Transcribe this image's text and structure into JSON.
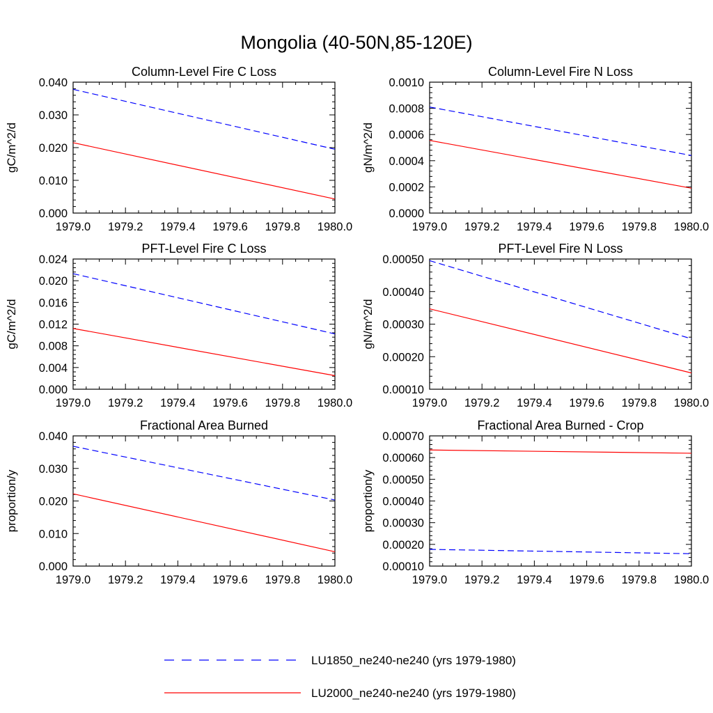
{
  "figure_title": "Mongolia (40-50N,85-120E)",
  "legend": [
    {
      "label": "LU1850_ne240-ne240 (yrs 1979-1980)",
      "color": "#0000ff",
      "dash": "dashed"
    },
    {
      "label": "LU2000_ne240-ne240 (yrs 1979-1980)",
      "color": "#ff0000",
      "dash": "solid"
    }
  ],
  "chart_data": [
    {
      "type": "line",
      "title": "Column-Level Fire C Loss",
      "ylabel": "gC/m^2/d",
      "xlim": [
        1979.0,
        1980.0
      ],
      "ylim": [
        0.0,
        0.04
      ],
      "xticks": [
        "1979.0",
        "1979.2",
        "1979.4",
        "1979.6",
        "1979.8",
        "1980.0"
      ],
      "yticks": [
        "0.000",
        "0.010",
        "0.020",
        "0.030",
        "0.040"
      ],
      "x": [
        1979.0,
        1980.0
      ],
      "series": [
        {
          "name": "LU1850_ne240-ne240 (yrs 1979-1980)",
          "color": "#0000ff",
          "dash": "dashed",
          "values": [
            0.0378,
            0.0195
          ]
        },
        {
          "name": "LU2000_ne240-ne240 (yrs 1979-1980)",
          "color": "#ff0000",
          "dash": "solid",
          "values": [
            0.0215,
            0.0043
          ]
        }
      ]
    },
    {
      "type": "line",
      "title": "Column-Level Fire N Loss",
      "ylabel": "gN/m^2/d",
      "xlim": [
        1979.0,
        1980.0
      ],
      "ylim": [
        0.0,
        0.001
      ],
      "xticks": [
        "1979.0",
        "1979.2",
        "1979.4",
        "1979.6",
        "1979.8",
        "1980.0"
      ],
      "yticks": [
        "0.0000",
        "0.0002",
        "0.0004",
        "0.0006",
        "0.0008",
        "0.0010"
      ],
      "x": [
        1979.0,
        1980.0
      ],
      "series": [
        {
          "name": "LU1850_ne240-ne240 (yrs 1979-1980)",
          "color": "#0000ff",
          "dash": "dashed",
          "values": [
            0.00081,
            0.00044
          ]
        },
        {
          "name": "LU2000_ne240-ne240 (yrs 1979-1980)",
          "color": "#ff0000",
          "dash": "solid",
          "values": [
            0.000555,
            0.00019
          ]
        }
      ]
    },
    {
      "type": "line",
      "title": "PFT-Level Fire C Loss",
      "ylabel": "gC/m^2/d",
      "xlim": [
        1979.0,
        1980.0
      ],
      "ylim": [
        0.0,
        0.024
      ],
      "xticks": [
        "1979.0",
        "1979.2",
        "1979.4",
        "1979.6",
        "1979.8",
        "1980.0"
      ],
      "yticks": [
        "0.000",
        "0.004",
        "0.008",
        "0.012",
        "0.016",
        "0.020",
        "0.024"
      ],
      "x": [
        1979.0,
        1980.0
      ],
      "series": [
        {
          "name": "LU1850_ne240-ne240 (yrs 1979-1980)",
          "color": "#0000ff",
          "dash": "dashed",
          "values": [
            0.0213,
            0.0102
          ]
        },
        {
          "name": "LU2000_ne240-ne240 (yrs 1979-1980)",
          "color": "#ff0000",
          "dash": "solid",
          "values": [
            0.0112,
            0.0025
          ]
        }
      ]
    },
    {
      "type": "line",
      "title": "PFT-Level Fire N Loss",
      "ylabel": "gN/m^2/d",
      "xlim": [
        1979.0,
        1980.0
      ],
      "ylim": [
        0.0001,
        0.0005
      ],
      "xticks": [
        "1979.0",
        "1979.2",
        "1979.4",
        "1979.6",
        "1979.8",
        "1980.0"
      ],
      "yticks": [
        "0.00010",
        "0.00020",
        "0.00030",
        "0.00040",
        "0.00050"
      ],
      "x": [
        1979.0,
        1980.0
      ],
      "series": [
        {
          "name": "LU1850_ne240-ne240 (yrs 1979-1980)",
          "color": "#0000ff",
          "dash": "dashed",
          "values": [
            0.000495,
            0.000255
          ]
        },
        {
          "name": "LU2000_ne240-ne240 (yrs 1979-1980)",
          "color": "#ff0000",
          "dash": "solid",
          "values": [
            0.000347,
            0.00015
          ]
        }
      ]
    },
    {
      "type": "line",
      "title": "Fractional Area Burned",
      "ylabel": "proportion/y",
      "xlim": [
        1979.0,
        1980.0
      ],
      "ylim": [
        0.0,
        0.04
      ],
      "xticks": [
        "1979.0",
        "1979.2",
        "1979.4",
        "1979.6",
        "1979.8",
        "1980.0"
      ],
      "yticks": [
        "0.000",
        "0.010",
        "0.020",
        "0.030",
        "0.040"
      ],
      "x": [
        1979.0,
        1980.0
      ],
      "series": [
        {
          "name": "LU1850_ne240-ne240 (yrs 1979-1980)",
          "color": "#0000ff",
          "dash": "dashed",
          "values": [
            0.0368,
            0.0203
          ]
        },
        {
          "name": "LU2000_ne240-ne240 (yrs 1979-1980)",
          "color": "#ff0000",
          "dash": "solid",
          "values": [
            0.0222,
            0.0044
          ]
        }
      ]
    },
    {
      "type": "line",
      "title": "Fractional Area Burned - Crop",
      "ylabel": "proportion/y",
      "xlim": [
        1979.0,
        1980.0
      ],
      "ylim": [
        0.0001,
        0.0007
      ],
      "xticks": [
        "1979.0",
        "1979.2",
        "1979.4",
        "1979.6",
        "1979.8",
        "1980.0"
      ],
      "yticks": [
        "0.00010",
        "0.00020",
        "0.00030",
        "0.00040",
        "0.00050",
        "0.00060",
        "0.00070"
      ],
      "x": [
        1979.0,
        1980.0
      ],
      "series": [
        {
          "name": "LU1850_ne240-ne240 (yrs 1979-1980)",
          "color": "#0000ff",
          "dash": "dashed",
          "values": [
            0.000177,
            0.000157
          ]
        },
        {
          "name": "LU2000_ne240-ne240 (yrs 1979-1980)",
          "color": "#ff0000",
          "dash": "solid",
          "values": [
            0.000635,
            0.00062
          ]
        }
      ]
    }
  ]
}
